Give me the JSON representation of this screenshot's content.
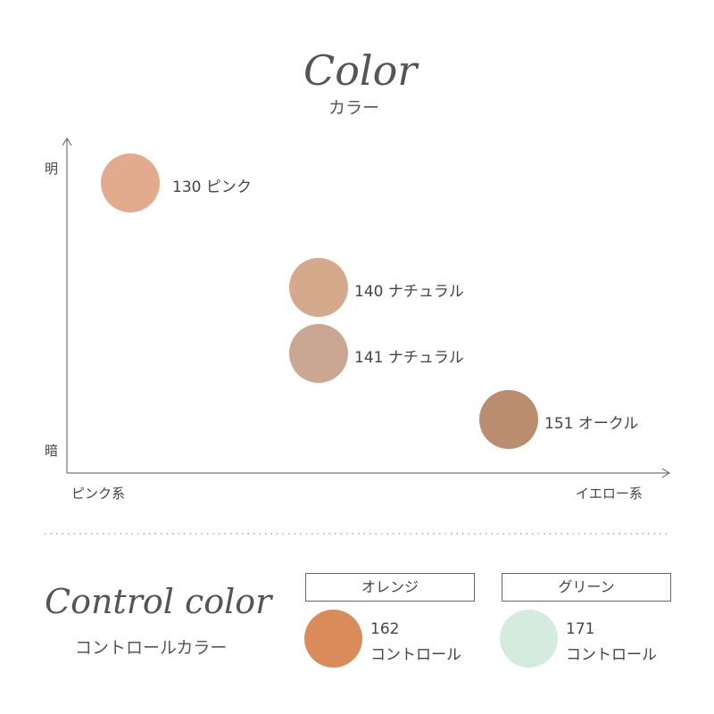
{
  "header": {
    "title_script": "Color",
    "subtitle": "カラー"
  },
  "map": {
    "y_top_label": "明",
    "y_bottom_label": "暗",
    "x_left_label": "ピンク系",
    "x_right_label": "イエロー系",
    "items": [
      {
        "label": "130 ピンク",
        "color": "#e2ab8d"
      },
      {
        "label": "140 ナチュラル",
        "color": "#d4a98c"
      },
      {
        "label": "141 ナチュラル",
        "color": "#cba693"
      },
      {
        "label": "151 オークル",
        "color": "#ba8c70"
      }
    ]
  },
  "control": {
    "title_script": "Control color",
    "subtitle": "コントロールカラー",
    "groups": [
      {
        "header": "オレンジ",
        "number": "162",
        "name": "コントロール",
        "color": "#d98b5a"
      },
      {
        "header": "グリーン",
        "number": "171",
        "name": "コントロール",
        "color": "#d5ebdd"
      }
    ]
  }
}
